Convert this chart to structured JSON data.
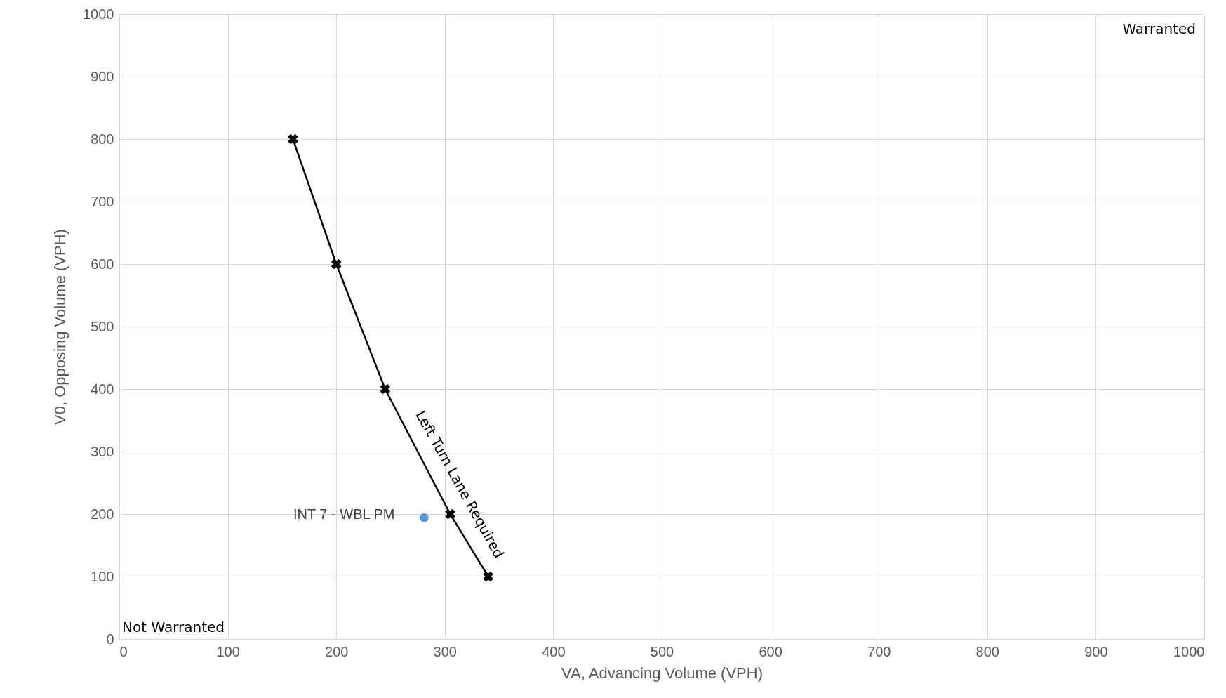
{
  "chart_data": {
    "type": "line",
    "xlabel": "VA, Advancing Volume (VPH)",
    "ylabel": "V0, Opposing Volume (VPH)",
    "xlim": [
      0,
      1000
    ],
    "ylim": [
      0,
      1000
    ],
    "xticks": [
      0,
      100,
      200,
      300,
      400,
      500,
      600,
      700,
      800,
      900,
      1000
    ],
    "yticks": [
      0,
      100,
      200,
      300,
      400,
      500,
      600,
      700,
      800,
      900,
      1000
    ],
    "grid": true,
    "series": [
      {
        "color": "#000000",
        "marker": "cross",
        "x": [
          160,
          200,
          245,
          305,
          340
        ],
        "values": [
          800,
          600,
          400,
          200,
          100
        ]
      },
      {
        "type": "scatter",
        "name": "INT 7 - WBL PM",
        "color": "#5b9bd5",
        "marker": "circle",
        "x": [
          281
        ],
        "values": [
          194
        ]
      }
    ],
    "annotations": [
      "Warranted",
      "Not Warranted",
      "Left Turn Lane Required"
    ]
  }
}
